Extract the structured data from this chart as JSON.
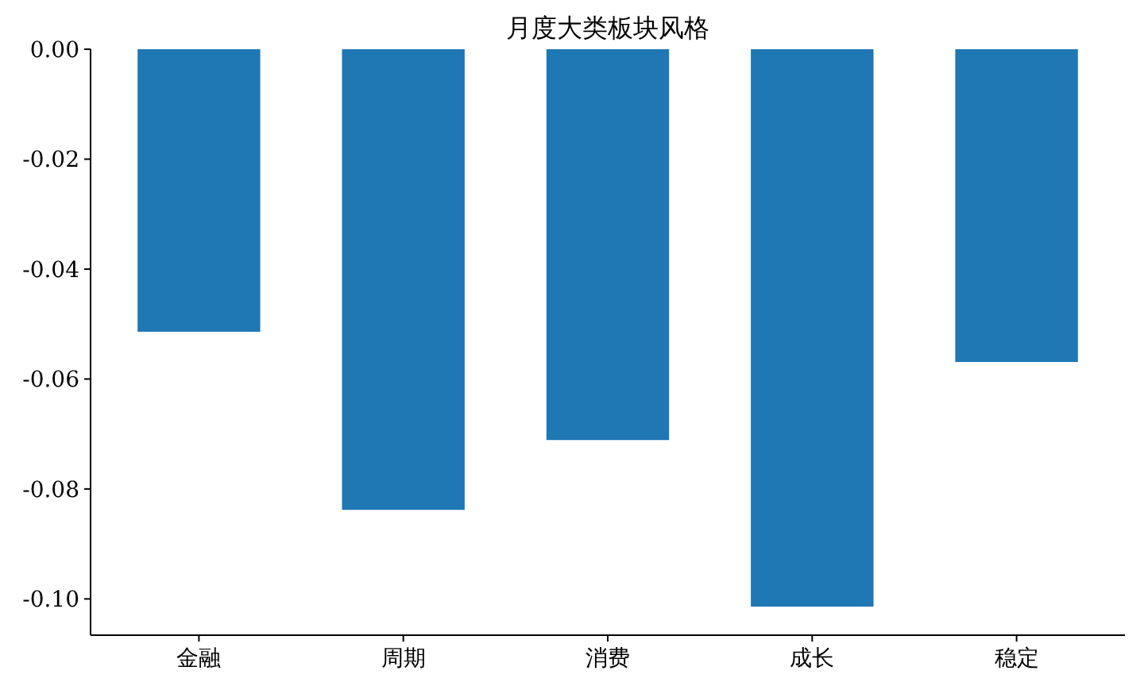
{
  "chart_data": {
    "type": "bar",
    "title": "月度大类板块风格",
    "categories": [
      "金融",
      "周期",
      "消费",
      "成长",
      "稳定"
    ],
    "values": [
      -0.0514,
      -0.0838,
      -0.0711,
      -0.1014,
      -0.0569
    ],
    "color": "#1f77b4",
    "ylim": [
      -0.1066,
      0
    ],
    "yticks": [
      {
        "value": 0,
        "label": "0.00"
      },
      {
        "value": -0.02,
        "label": "-0.02"
      },
      {
        "value": -0.04,
        "label": "-0.04"
      },
      {
        "value": -0.06,
        "label": "-0.06"
      },
      {
        "value": -0.08,
        "label": "-0.08"
      },
      {
        "value": -0.1,
        "label": "-0.10"
      }
    ]
  }
}
